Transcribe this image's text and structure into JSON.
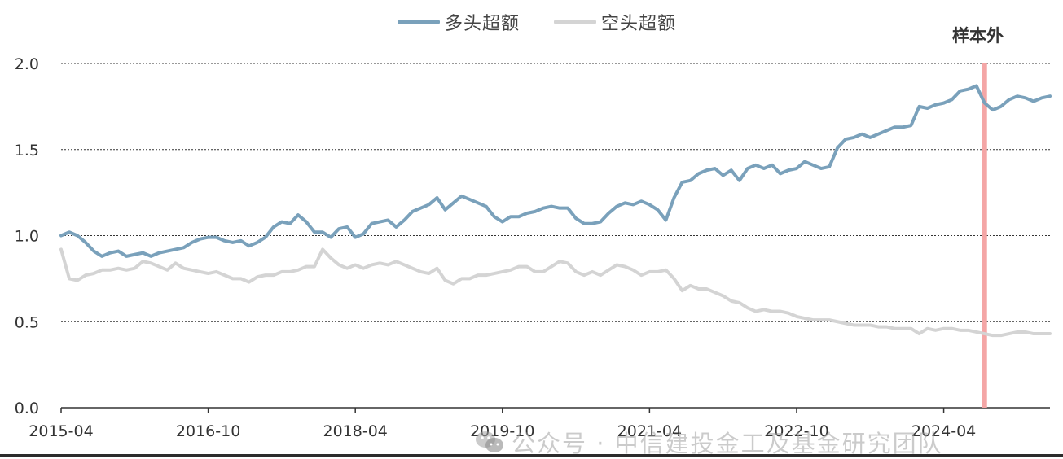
{
  "chart_data": {
    "type": "line",
    "title": "",
    "xlabel": "",
    "ylabel": "",
    "ylim": [
      0,
      2.0
    ],
    "yticks": [
      "0.0",
      "0.5",
      "1.0",
      "1.5",
      "2.0"
    ],
    "xticks": [
      "2015-04",
      "2016-10",
      "2018-04",
      "2019-10",
      "2021-04",
      "2022-10",
      "2024-04"
    ],
    "grid": "horizontal dashed",
    "legend_position": "top-center",
    "annotation": {
      "label": "样本外",
      "start": "2024-09"
    },
    "series": [
      {
        "name": "多头超额",
        "color": "#7aa1bb",
        "points": [
          [
            "2015-04",
            1.0
          ],
          [
            "2015-05",
            1.02
          ],
          [
            "2015-06",
            1.0
          ],
          [
            "2015-07",
            0.96
          ],
          [
            "2015-08",
            0.91
          ],
          [
            "2015-09",
            0.88
          ],
          [
            "2015-10",
            0.9
          ],
          [
            "2015-11",
            0.91
          ],
          [
            "2015-12",
            0.88
          ],
          [
            "2016-01",
            0.89
          ],
          [
            "2016-02",
            0.9
          ],
          [
            "2016-03",
            0.88
          ],
          [
            "2016-04",
            0.9
          ],
          [
            "2016-05",
            0.91
          ],
          [
            "2016-06",
            0.92
          ],
          [
            "2016-07",
            0.93
          ],
          [
            "2016-08",
            0.96
          ],
          [
            "2016-09",
            0.98
          ],
          [
            "2016-10",
            0.99
          ],
          [
            "2016-11",
            0.99
          ],
          [
            "2016-12",
            0.97
          ],
          [
            "2017-01",
            0.96
          ],
          [
            "2017-02",
            0.97
          ],
          [
            "2017-03",
            0.94
          ],
          [
            "2017-04",
            0.96
          ],
          [
            "2017-05",
            0.99
          ],
          [
            "2017-06",
            1.05
          ],
          [
            "2017-07",
            1.08
          ],
          [
            "2017-08",
            1.07
          ],
          [
            "2017-09",
            1.12
          ],
          [
            "2017-10",
            1.08
          ],
          [
            "2017-11",
            1.02
          ],
          [
            "2017-12",
            1.02
          ],
          [
            "2018-01",
            0.99
          ],
          [
            "2018-02",
            1.04
          ],
          [
            "2018-03",
            1.05
          ],
          [
            "2018-04",
            0.99
          ],
          [
            "2018-05",
            1.01
          ],
          [
            "2018-06",
            1.07
          ],
          [
            "2018-07",
            1.08
          ],
          [
            "2018-08",
            1.09
          ],
          [
            "2018-09",
            1.05
          ],
          [
            "2018-10",
            1.09
          ],
          [
            "2018-11",
            1.14
          ],
          [
            "2018-12",
            1.16
          ],
          [
            "2019-01",
            1.18
          ],
          [
            "2019-02",
            1.22
          ],
          [
            "2019-03",
            1.15
          ],
          [
            "2019-04",
            1.19
          ],
          [
            "2019-05",
            1.23
          ],
          [
            "2019-06",
            1.21
          ],
          [
            "2019-07",
            1.19
          ],
          [
            "2019-08",
            1.17
          ],
          [
            "2019-09",
            1.11
          ],
          [
            "2019-10",
            1.08
          ],
          [
            "2019-11",
            1.11
          ],
          [
            "2019-12",
            1.11
          ],
          [
            "2020-01",
            1.13
          ],
          [
            "2020-02",
            1.14
          ],
          [
            "2020-03",
            1.16
          ],
          [
            "2020-04",
            1.17
          ],
          [
            "2020-05",
            1.16
          ],
          [
            "2020-06",
            1.16
          ],
          [
            "2020-07",
            1.1
          ],
          [
            "2020-08",
            1.07
          ],
          [
            "2020-09",
            1.07
          ],
          [
            "2020-10",
            1.08
          ],
          [
            "2020-11",
            1.13
          ],
          [
            "2020-12",
            1.17
          ],
          [
            "2021-01",
            1.19
          ],
          [
            "2021-02",
            1.18
          ],
          [
            "2021-03",
            1.2
          ],
          [
            "2021-04",
            1.18
          ],
          [
            "2021-05",
            1.15
          ],
          [
            "2021-06",
            1.09
          ],
          [
            "2021-07",
            1.22
          ],
          [
            "2021-08",
            1.31
          ],
          [
            "2021-09",
            1.32
          ],
          [
            "2021-10",
            1.36
          ],
          [
            "2021-11",
            1.38
          ],
          [
            "2021-12",
            1.39
          ],
          [
            "2022-01",
            1.35
          ],
          [
            "2022-02",
            1.38
          ],
          [
            "2022-03",
            1.32
          ],
          [
            "2022-04",
            1.39
          ],
          [
            "2022-05",
            1.41
          ],
          [
            "2022-06",
            1.39
          ],
          [
            "2022-07",
            1.41
          ],
          [
            "2022-08",
            1.36
          ],
          [
            "2022-09",
            1.38
          ],
          [
            "2022-10",
            1.39
          ],
          [
            "2022-11",
            1.43
          ],
          [
            "2022-12",
            1.41
          ],
          [
            "2023-01",
            1.39
          ],
          [
            "2023-02",
            1.4
          ],
          [
            "2023-03",
            1.51
          ],
          [
            "2023-04",
            1.56
          ],
          [
            "2023-05",
            1.57
          ],
          [
            "2023-06",
            1.59
          ],
          [
            "2023-07",
            1.57
          ],
          [
            "2023-08",
            1.59
          ],
          [
            "2023-09",
            1.61
          ],
          [
            "2023-10",
            1.63
          ],
          [
            "2023-11",
            1.63
          ],
          [
            "2023-12",
            1.64
          ],
          [
            "2024-01",
            1.75
          ],
          [
            "2024-02",
            1.74
          ],
          [
            "2024-03",
            1.76
          ],
          [
            "2024-04",
            1.77
          ],
          [
            "2024-05",
            1.79
          ],
          [
            "2024-06",
            1.84
          ],
          [
            "2024-07",
            1.85
          ],
          [
            "2024-08",
            1.87
          ],
          [
            "2024-09",
            1.77
          ],
          [
            "2024-10",
            1.73
          ],
          [
            "2024-11",
            1.75
          ],
          [
            "2024-12",
            1.79
          ],
          [
            "2025-01",
            1.81
          ],
          [
            "2025-02",
            1.8
          ],
          [
            "2025-03",
            1.78
          ],
          [
            "2025-04",
            1.8
          ],
          [
            "2025-05",
            1.81
          ]
        ]
      },
      {
        "name": "空头超额",
        "color": "#d4d4d4",
        "points": [
          [
            "2015-04",
            0.92
          ],
          [
            "2015-05",
            0.75
          ],
          [
            "2015-06",
            0.74
          ],
          [
            "2015-07",
            0.77
          ],
          [
            "2015-08",
            0.78
          ],
          [
            "2015-09",
            0.8
          ],
          [
            "2015-10",
            0.8
          ],
          [
            "2015-11",
            0.81
          ],
          [
            "2015-12",
            0.8
          ],
          [
            "2016-01",
            0.81
          ],
          [
            "2016-02",
            0.85
          ],
          [
            "2016-03",
            0.84
          ],
          [
            "2016-04",
            0.82
          ],
          [
            "2016-05",
            0.8
          ],
          [
            "2016-06",
            0.84
          ],
          [
            "2016-07",
            0.81
          ],
          [
            "2016-08",
            0.8
          ],
          [
            "2016-09",
            0.79
          ],
          [
            "2016-10",
            0.78
          ],
          [
            "2016-11",
            0.79
          ],
          [
            "2016-12",
            0.77
          ],
          [
            "2017-01",
            0.75
          ],
          [
            "2017-02",
            0.75
          ],
          [
            "2017-03",
            0.73
          ],
          [
            "2017-04",
            0.76
          ],
          [
            "2017-05",
            0.77
          ],
          [
            "2017-06",
            0.77
          ],
          [
            "2017-07",
            0.79
          ],
          [
            "2017-08",
            0.79
          ],
          [
            "2017-09",
            0.8
          ],
          [
            "2017-10",
            0.82
          ],
          [
            "2017-11",
            0.82
          ],
          [
            "2017-12",
            0.92
          ],
          [
            "2018-01",
            0.87
          ],
          [
            "2018-02",
            0.83
          ],
          [
            "2018-03",
            0.81
          ],
          [
            "2018-04",
            0.83
          ],
          [
            "2018-05",
            0.81
          ],
          [
            "2018-06",
            0.83
          ],
          [
            "2018-07",
            0.84
          ],
          [
            "2018-08",
            0.83
          ],
          [
            "2018-09",
            0.85
          ],
          [
            "2018-10",
            0.83
          ],
          [
            "2018-11",
            0.81
          ],
          [
            "2018-12",
            0.79
          ],
          [
            "2019-01",
            0.78
          ],
          [
            "2019-02",
            0.81
          ],
          [
            "2019-03",
            0.74
          ],
          [
            "2019-04",
            0.72
          ],
          [
            "2019-05",
            0.75
          ],
          [
            "2019-06",
            0.75
          ],
          [
            "2019-07",
            0.77
          ],
          [
            "2019-08",
            0.77
          ],
          [
            "2019-09",
            0.78
          ],
          [
            "2019-10",
            0.79
          ],
          [
            "2019-11",
            0.8
          ],
          [
            "2019-12",
            0.82
          ],
          [
            "2020-01",
            0.82
          ],
          [
            "2020-02",
            0.79
          ],
          [
            "2020-03",
            0.79
          ],
          [
            "2020-04",
            0.82
          ],
          [
            "2020-05",
            0.85
          ],
          [
            "2020-06",
            0.84
          ],
          [
            "2020-07",
            0.79
          ],
          [
            "2020-08",
            0.77
          ],
          [
            "2020-09",
            0.79
          ],
          [
            "2020-10",
            0.77
          ],
          [
            "2020-11",
            0.8
          ],
          [
            "2020-12",
            0.83
          ],
          [
            "2021-01",
            0.82
          ],
          [
            "2021-02",
            0.8
          ],
          [
            "2021-03",
            0.77
          ],
          [
            "2021-04",
            0.79
          ],
          [
            "2021-05",
            0.79
          ],
          [
            "2021-06",
            0.8
          ],
          [
            "2021-07",
            0.75
          ],
          [
            "2021-08",
            0.68
          ],
          [
            "2021-09",
            0.71
          ],
          [
            "2021-10",
            0.69
          ],
          [
            "2021-11",
            0.69
          ],
          [
            "2021-12",
            0.67
          ],
          [
            "2022-01",
            0.65
          ],
          [
            "2022-02",
            0.62
          ],
          [
            "2022-03",
            0.61
          ],
          [
            "2022-04",
            0.58
          ],
          [
            "2022-05",
            0.56
          ],
          [
            "2022-06",
            0.57
          ],
          [
            "2022-07",
            0.56
          ],
          [
            "2022-08",
            0.56
          ],
          [
            "2022-09",
            0.55
          ],
          [
            "2022-10",
            0.53
          ],
          [
            "2022-11",
            0.52
          ],
          [
            "2022-12",
            0.51
          ],
          [
            "2023-01",
            0.51
          ],
          [
            "2023-02",
            0.51
          ],
          [
            "2023-03",
            0.5
          ],
          [
            "2023-04",
            0.49
          ],
          [
            "2023-05",
            0.48
          ],
          [
            "2023-06",
            0.48
          ],
          [
            "2023-07",
            0.48
          ],
          [
            "2023-08",
            0.47
          ],
          [
            "2023-09",
            0.47
          ],
          [
            "2023-10",
            0.46
          ],
          [
            "2023-11",
            0.46
          ],
          [
            "2023-12",
            0.46
          ],
          [
            "2024-01",
            0.43
          ],
          [
            "2024-02",
            0.46
          ],
          [
            "2024-03",
            0.45
          ],
          [
            "2024-04",
            0.46
          ],
          [
            "2024-05",
            0.46
          ],
          [
            "2024-06",
            0.45
          ],
          [
            "2024-07",
            0.45
          ],
          [
            "2024-08",
            0.44
          ],
          [
            "2024-09",
            0.43
          ],
          [
            "2024-10",
            0.42
          ],
          [
            "2024-11",
            0.42
          ],
          [
            "2024-12",
            0.43
          ],
          [
            "2025-01",
            0.44
          ],
          [
            "2025-02",
            0.44
          ],
          [
            "2025-03",
            0.43
          ],
          [
            "2025-04",
            0.43
          ],
          [
            "2025-05",
            0.43
          ]
        ]
      }
    ]
  },
  "watermark": {
    "icon": "wechat-icon",
    "text": "公众号 · 中信建投金工及基金研究团队"
  }
}
